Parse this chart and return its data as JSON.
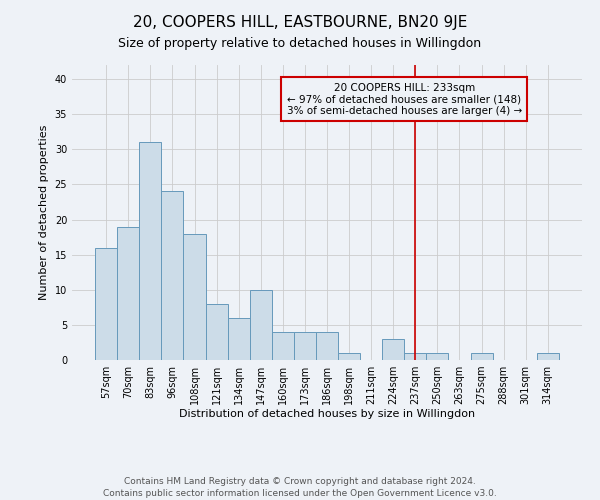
{
  "title": "20, COOPERS HILL, EASTBOURNE, BN20 9JE",
  "subtitle": "Size of property relative to detached houses in Willingdon",
  "xlabel": "Distribution of detached houses by size in Willingdon",
  "ylabel": "Number of detached properties",
  "footer_line1": "Contains HM Land Registry data © Crown copyright and database right 2024.",
  "footer_line2": "Contains public sector information licensed under the Open Government Licence v3.0.",
  "categories": [
    "57sqm",
    "70sqm",
    "83sqm",
    "96sqm",
    "108sqm",
    "121sqm",
    "134sqm",
    "147sqm",
    "160sqm",
    "173sqm",
    "186sqm",
    "198sqm",
    "211sqm",
    "224sqm",
    "237sqm",
    "250sqm",
    "263sqm",
    "275sqm",
    "288sqm",
    "301sqm",
    "314sqm"
  ],
  "values": [
    16,
    19,
    31,
    24,
    18,
    8,
    6,
    10,
    4,
    4,
    4,
    1,
    0,
    3,
    1,
    1,
    0,
    1,
    0,
    0,
    1
  ],
  "bar_color": "#ccdce8",
  "bar_edge_color": "#6699bb",
  "vline_x_index": 14,
  "vline_color": "#cc0000",
  "annotation_line1": "20 COOPERS HILL: 233sqm",
  "annotation_line2": "← 97% of detached houses are smaller (148)",
  "annotation_line3": "3% of semi-detached houses are larger (4) →",
  "ylim": [
    0,
    42
  ],
  "yticks": [
    0,
    5,
    10,
    15,
    20,
    25,
    30,
    35,
    40
  ],
  "grid_color": "#cccccc",
  "background_color": "#eef2f7",
  "title_fontsize": 11,
  "subtitle_fontsize": 9,
  "axis_label_fontsize": 8,
  "tick_fontsize": 7,
  "annotation_fontsize": 7.5,
  "footer_fontsize": 6.5
}
